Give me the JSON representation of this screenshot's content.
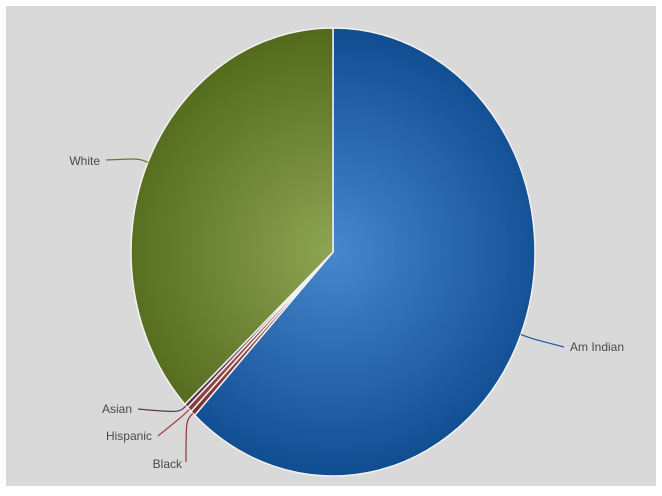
{
  "chart_data": {
    "type": "pie",
    "categories": [
      "Am Indian",
      "Black",
      "Hispanic",
      "Asian",
      "White"
    ],
    "values": [
      62.0,
      0.4,
      0.4,
      0.3,
      36.9
    ],
    "colors": {
      "Am Indian": "#1565c0",
      "Black": "#a03c3c",
      "Hispanic": "#b04a4a",
      "Asian": "#6b3a5b",
      "White": "#6e8c24"
    },
    "plot_background": "#d9d9d9",
    "start_angle_deg": 0,
    "direction": "clockwise"
  }
}
